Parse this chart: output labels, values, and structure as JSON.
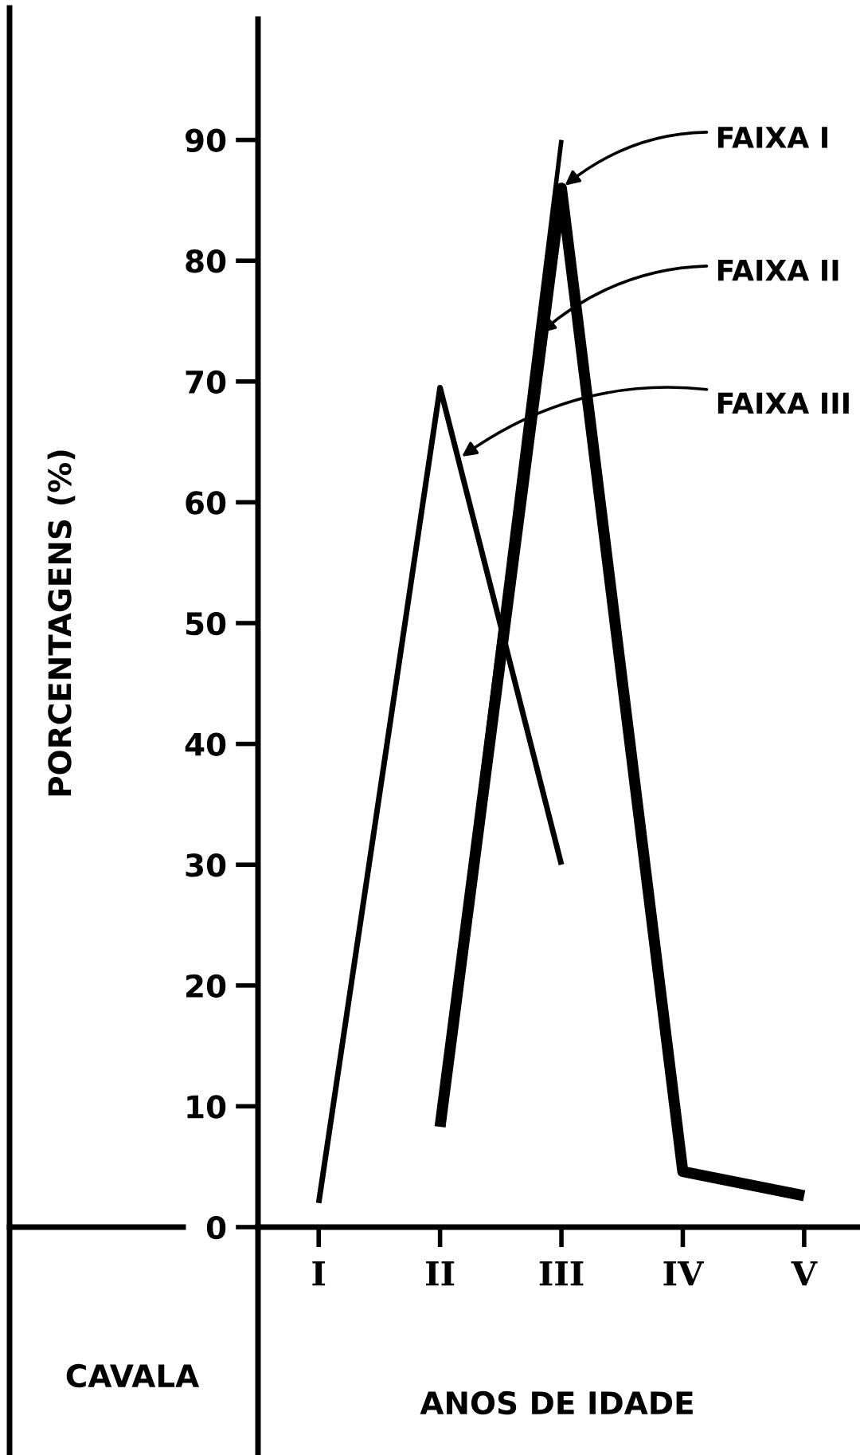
{
  "chart_data": {
    "type": "line",
    "ylabel": "PORCENTAGENS (%)",
    "xlabel": "ANOS DE IDADE",
    "categories": [
      "I",
      "II",
      "III",
      "IV",
      "V"
    ],
    "series": [
      {
        "name": "FAIXA I",
        "color": "#000000",
        "values": [
          null,
          8.3,
          86,
          4.6,
          2.6
        ]
      },
      {
        "name": "FAIXA II",
        "color": "#000000",
        "values": [
          null,
          9,
          90,
          null,
          null
        ]
      },
      {
        "name": "FAIXA III",
        "color": "#000000",
        "values": [
          2,
          69.5,
          30,
          null,
          null
        ]
      }
    ],
    "ylim": [
      0,
      100
    ],
    "yticks": [
      0,
      10,
      20,
      30,
      40,
      50,
      60,
      70,
      80,
      90
    ],
    "grid": false,
    "legend": false,
    "marker": "none",
    "line_style": "solid",
    "annotations": [
      "CAVALA"
    ]
  }
}
